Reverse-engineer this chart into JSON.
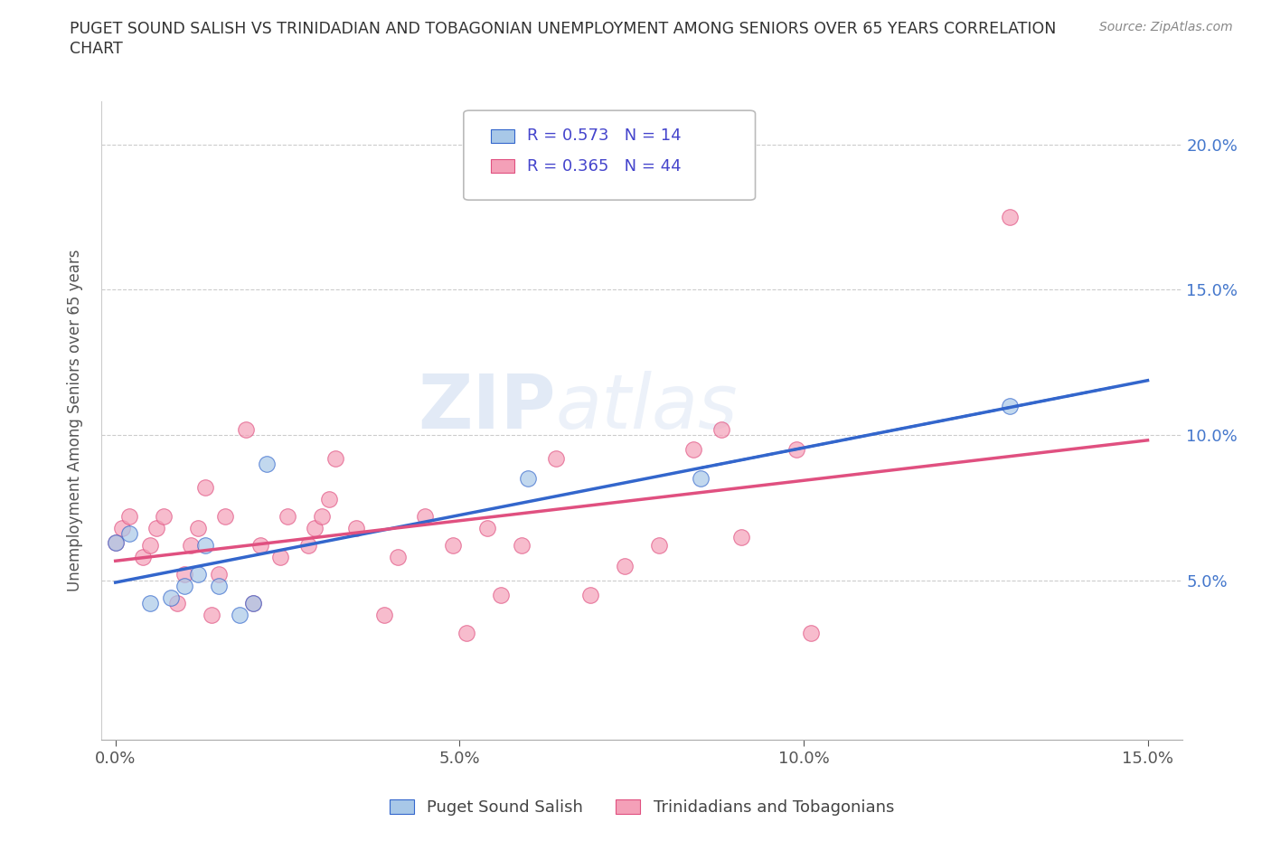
{
  "title_line1": "PUGET SOUND SALISH VS TRINIDADIAN AND TOBAGONIAN UNEMPLOYMENT AMONG SENIORS OVER 65 YEARS CORRELATION",
  "title_line2": "CHART",
  "source": "Source: ZipAtlas.com",
  "ylabel": "Unemployment Among Seniors over 65 years",
  "xlim": [
    -0.002,
    0.155
  ],
  "ylim": [
    -0.005,
    0.215
  ],
  "xticks": [
    0.0,
    0.05,
    0.1,
    0.15
  ],
  "xticklabels": [
    "0.0%",
    "5.0%",
    "10.0%",
    "15.0%"
  ],
  "yticks": [
    0.05,
    0.1,
    0.15,
    0.2
  ],
  "yticklabels_right": [
    "5.0%",
    "10.0%",
    "15.0%",
    "20.0%"
  ],
  "grid_yticks": [
    0.05,
    0.1,
    0.15,
    0.2
  ],
  "background_color": "#ffffff",
  "watermark_zip": "ZIP",
  "watermark_atlas": "atlas",
  "legend_text_color": "#4444cc",
  "blue_color": "#a8c8e8",
  "pink_color": "#f4a0b8",
  "blue_line_color": "#3366cc",
  "pink_line_color": "#e05080",
  "puget_x": [
    0.0,
    0.002,
    0.005,
    0.008,
    0.01,
    0.012,
    0.013,
    0.015,
    0.018,
    0.02,
    0.022,
    0.06,
    0.085,
    0.13
  ],
  "puget_y": [
    0.063,
    0.066,
    0.042,
    0.044,
    0.048,
    0.052,
    0.062,
    0.048,
    0.038,
    0.042,
    0.09,
    0.085,
    0.085,
    0.11
  ],
  "tnt_x": [
    0.0,
    0.001,
    0.002,
    0.004,
    0.005,
    0.006,
    0.007,
    0.009,
    0.01,
    0.011,
    0.012,
    0.013,
    0.014,
    0.015,
    0.016,
    0.019,
    0.02,
    0.021,
    0.024,
    0.025,
    0.028,
    0.029,
    0.03,
    0.031,
    0.032,
    0.035,
    0.039,
    0.041,
    0.045,
    0.049,
    0.051,
    0.054,
    0.056,
    0.059,
    0.064,
    0.069,
    0.074,
    0.079,
    0.084,
    0.088,
    0.091,
    0.099,
    0.101,
    0.13
  ],
  "tnt_y": [
    0.063,
    0.068,
    0.072,
    0.058,
    0.062,
    0.068,
    0.072,
    0.042,
    0.052,
    0.062,
    0.068,
    0.082,
    0.038,
    0.052,
    0.072,
    0.102,
    0.042,
    0.062,
    0.058,
    0.072,
    0.062,
    0.068,
    0.072,
    0.078,
    0.092,
    0.068,
    0.038,
    0.058,
    0.072,
    0.062,
    0.032,
    0.068,
    0.045,
    0.062,
    0.092,
    0.045,
    0.055,
    0.062,
    0.095,
    0.102,
    0.065,
    0.095,
    0.032,
    0.175
  ]
}
